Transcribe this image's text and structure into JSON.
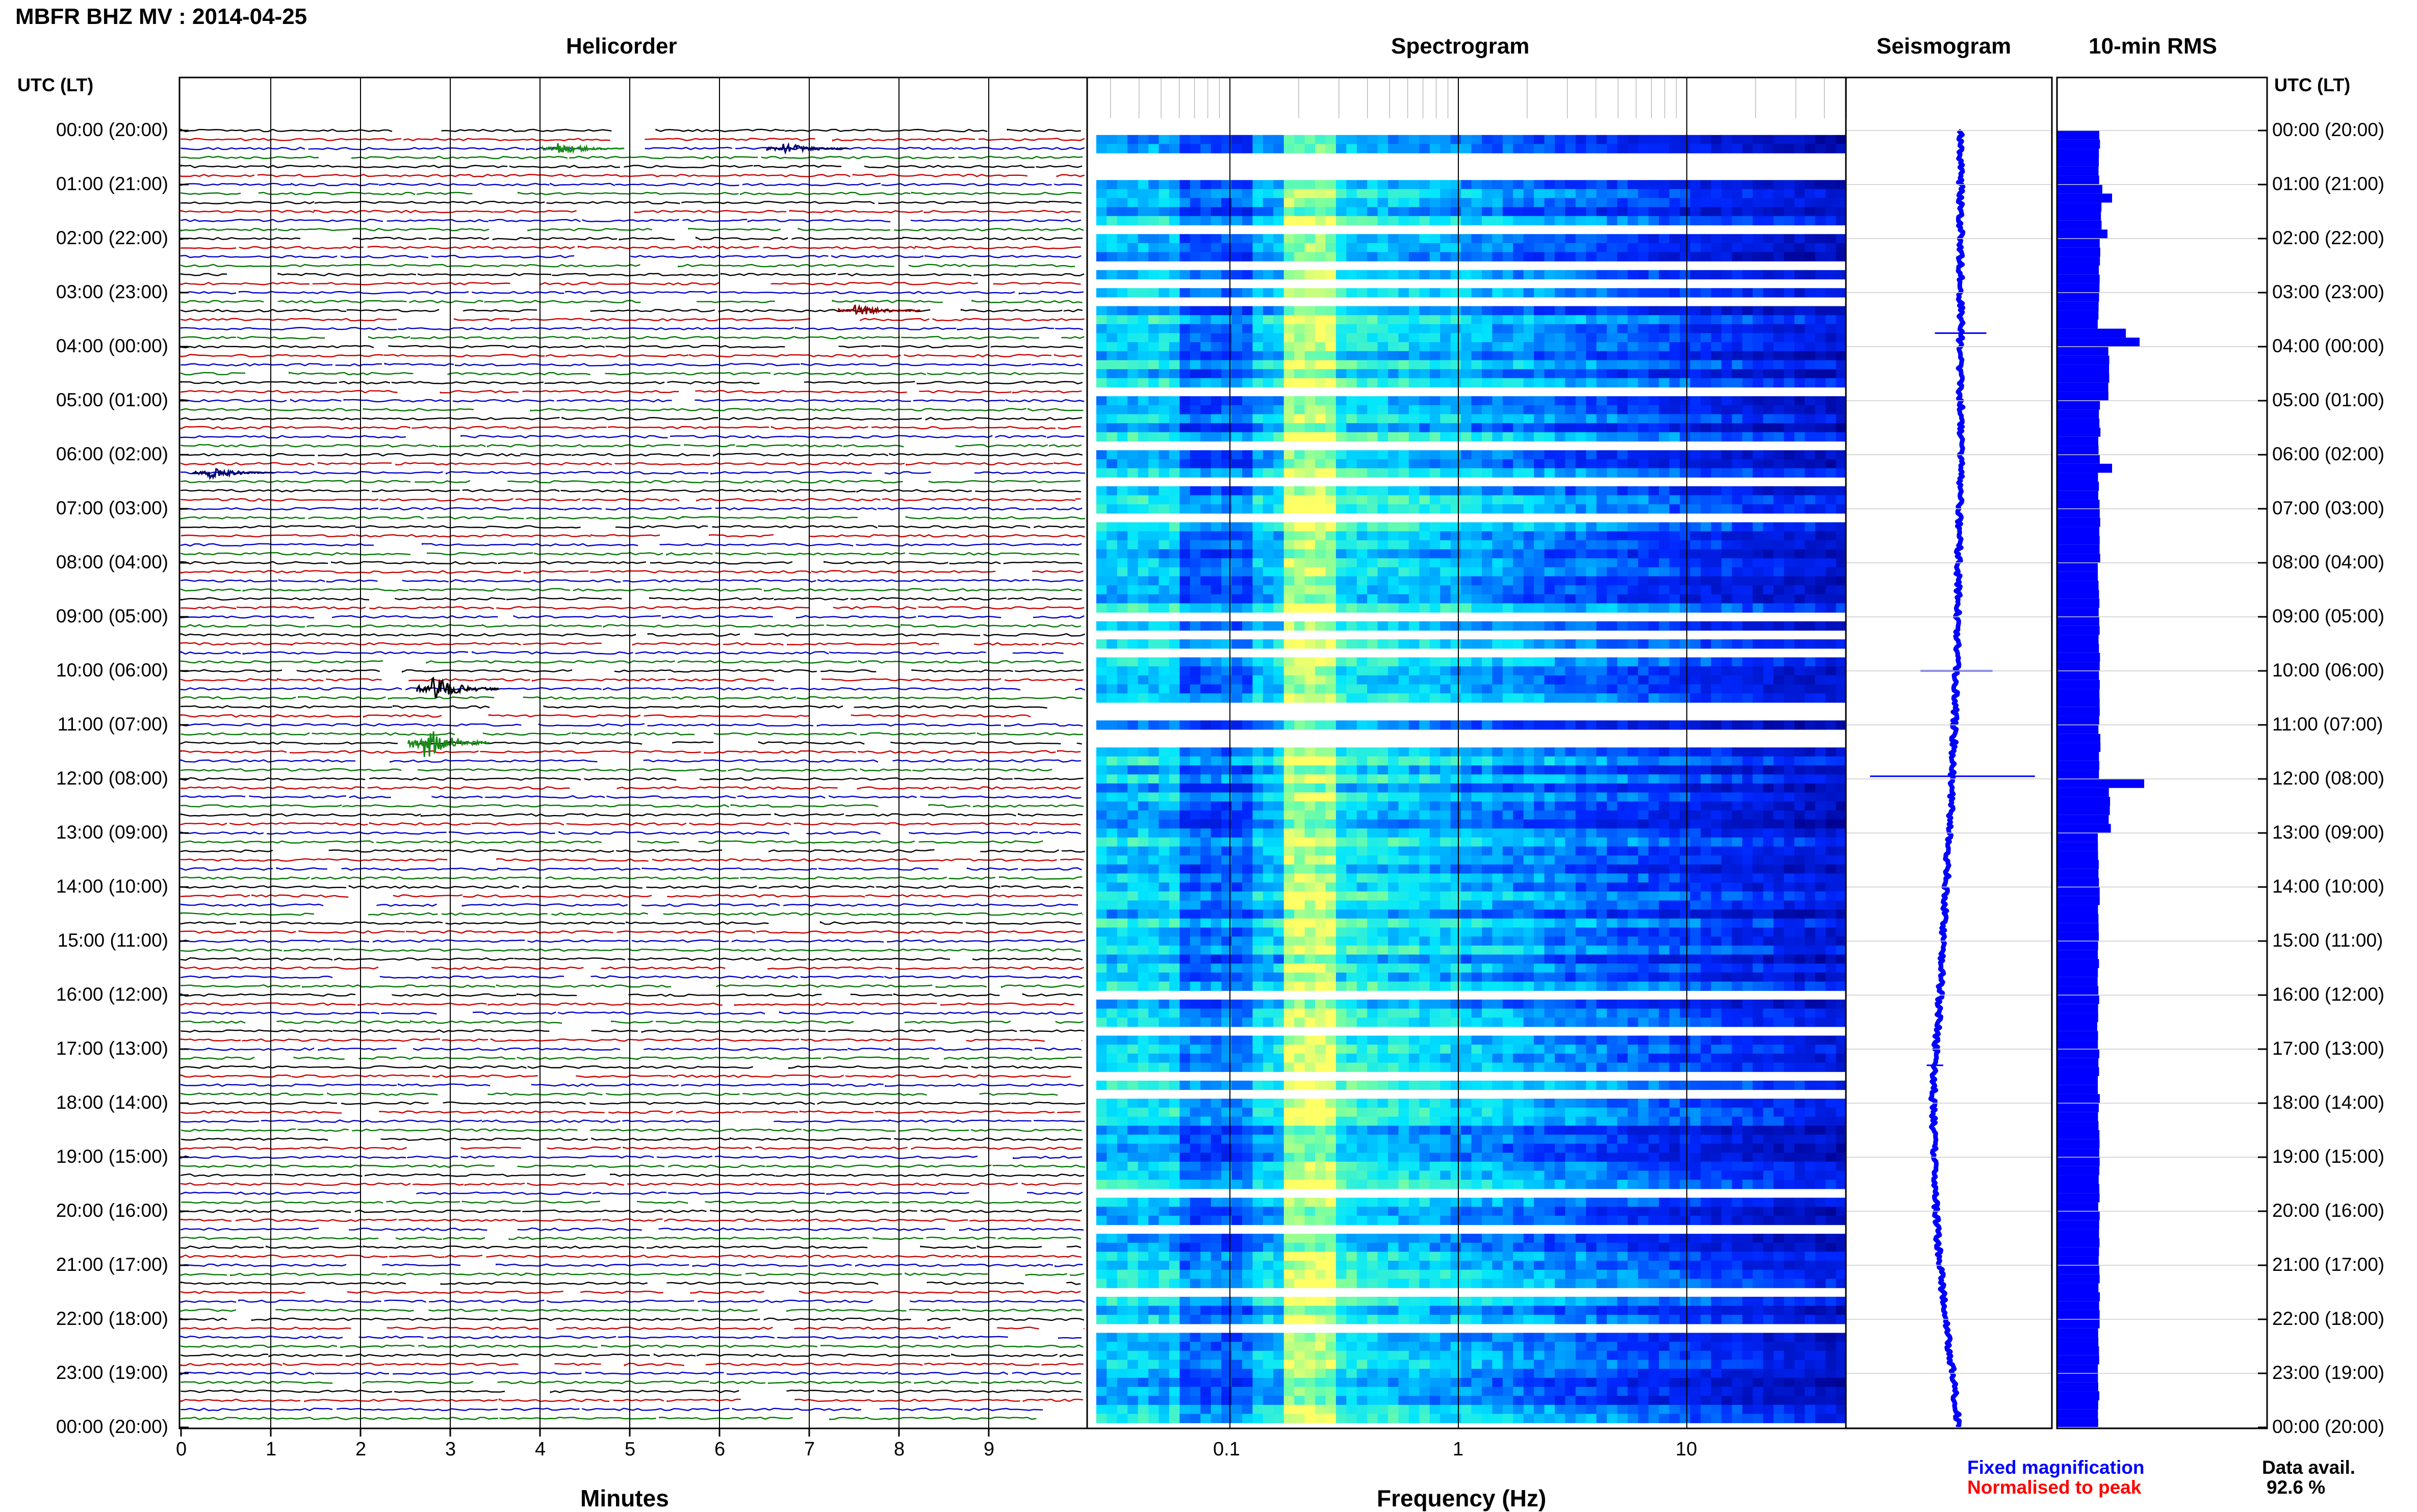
{
  "header": {
    "title": "MBFR BHZ MV : 2014-04-25",
    "panel_helicorder": "Helicorder",
    "panel_spectrogram": "Spectrogram",
    "panel_seismogram": "Seismogram",
    "panel_rms": "10-min RMS",
    "time_axis_label_left": "UTC (LT)",
    "time_axis_label_right": "UTC (LT)"
  },
  "footer": {
    "minutes_label": "Minutes",
    "frequency_label": "Frequency (Hz)",
    "legend_fixed": "Fixed magnification",
    "legend_normalised": "Normalised to peak",
    "data_avail_label": "Data avail.",
    "data_avail_value": "92.6 %"
  },
  "colors": {
    "fixed": "#0000ff",
    "normalised": "#ff0000",
    "trace_black": "#000000",
    "trace_red": "#cc0000",
    "trace_blue": "#0000cc",
    "trace_green": "#007700",
    "event_red": "#8b0000",
    "event_navy": "#000066",
    "event_green": "#1a8a1a",
    "spectrogram_low": "#00008b",
    "spectrogram_mid": "#00e5ff",
    "spectrogram_high": "#ffff66"
  },
  "chart_data": [
    {
      "type": "line",
      "panel": "Helicorder",
      "xlabel": "Minutes",
      "x_ticks": [
        "0",
        "1",
        "2",
        "3",
        "4",
        "5",
        "6",
        "7",
        "8",
        "9"
      ],
      "xlim": [
        0,
        10
      ],
      "time_labels": [
        "00:00 (20:00)",
        "01:00 (21:00)",
        "02:00 (22:00)",
        "03:00 (23:00)",
        "04:00 (00:00)",
        "05:00 (01:00)",
        "06:00 (02:00)",
        "07:00 (03:00)",
        "08:00 (04:00)",
        "09:00 (05:00)",
        "10:00 (06:00)",
        "11:00 (07:00)",
        "12:00 (08:00)",
        "13:00 (09:00)",
        "14:00 (10:00)",
        "15:00 (11:00)",
        "16:00 (12:00)",
        "17:00 (13:00)",
        "18:00 (14:00)",
        "19:00 (15:00)",
        "20:00 (16:00)",
        "21:00 (17:00)",
        "22:00 (18:00)",
        "23:00 (19:00)",
        "00:00 (20:00)"
      ],
      "lines_per_hour": 6,
      "events": [
        {
          "hour": 0,
          "minute": 4.2,
          "color": "green"
        },
        {
          "hour": 0,
          "minute": 6.7,
          "color": "navy"
        },
        {
          "hour": 3,
          "minute": 7.5,
          "color": "darkred"
        },
        {
          "hour": 6,
          "minute": 0.3,
          "color": "navy"
        },
        {
          "hour": 10,
          "minute": 2.8,
          "color": "black"
        },
        {
          "hour": 11,
          "minute": 2.7,
          "color": "green"
        }
      ]
    },
    {
      "type": "heatmap",
      "panel": "Spectrogram",
      "xlabel": "Frequency (Hz)",
      "x_scale": "log",
      "x_ticks": [
        "0.1",
        "1",
        "10"
      ],
      "xlim": [
        0.026,
        50
      ],
      "peak_band_hz": [
        0.18,
        0.3
      ]
    },
    {
      "type": "line",
      "panel": "Seismogram",
      "drift_offset": [
        0.0,
        0.0,
        0.0,
        0.0,
        0.0,
        0.0,
        0.0,
        -0.01,
        -0.02,
        -0.03,
        -0.04,
        -0.06,
        -0.08,
        -0.11,
        -0.14,
        -0.17,
        -0.2,
        -0.24,
        -0.27,
        -0.26,
        -0.24,
        -0.2,
        -0.15,
        -0.08,
        -0.02
      ],
      "spikes": [
        {
          "hour": 3.75,
          "amplitude": 0.25
        },
        {
          "hour": 10.0,
          "amplitude": 0.35
        },
        {
          "hour": 11.95,
          "amplitude": 0.8
        },
        {
          "hour": 17.3,
          "amplitude": 0.08
        }
      ]
    },
    {
      "type": "bar",
      "panel": "10-min RMS",
      "orientation": "horizontal",
      "baseline_value": 0.18,
      "hourly_rms": [
        0.2,
        0.24,
        0.2,
        0.19,
        0.36,
        0.2,
        0.19,
        0.21,
        0.19,
        0.19,
        0.2,
        0.2,
        0.38,
        0.19,
        0.19,
        0.18,
        0.18,
        0.19,
        0.19,
        0.19,
        0.19,
        0.19,
        0.19,
        0.19
      ],
      "peaks": [
        {
          "hour": 1.2,
          "value": 0.24
        },
        {
          "hour": 1.9,
          "value": 0.22
        },
        {
          "hour": 3.65,
          "value": 0.3
        },
        {
          "hour": 3.85,
          "value": 0.36
        },
        {
          "hour": 6.2,
          "value": 0.24
        },
        {
          "hour": 11.95,
          "value": 0.38
        }
      ]
    }
  ]
}
